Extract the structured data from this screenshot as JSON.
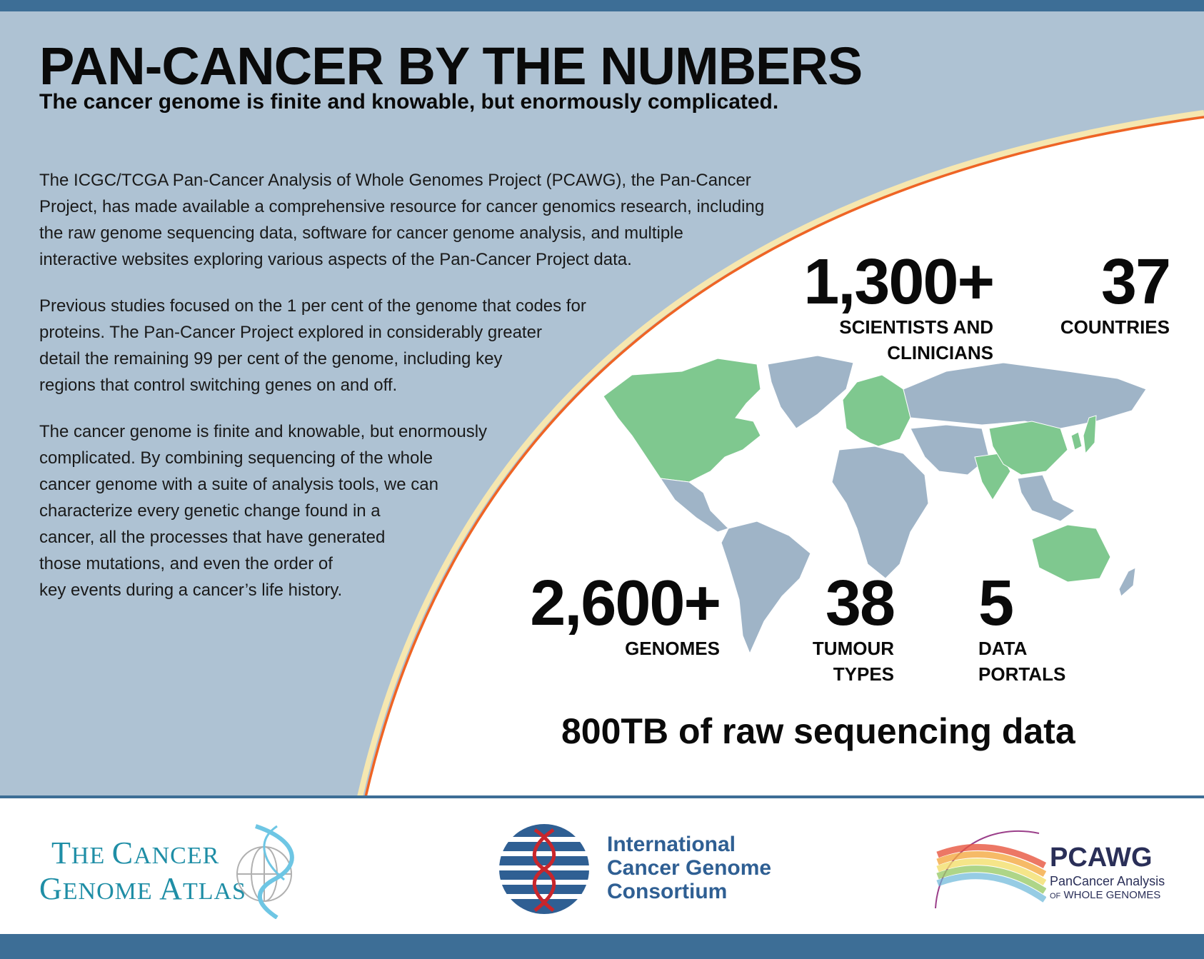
{
  "header": {
    "title": "PAN-CANCER BY THE NUMBERS",
    "subtitle": "The cancer genome is finite and knowable, but enormously complicated."
  },
  "body": {
    "paragraph1": [
      "The ICGC/TCGA Pan-Cancer Analysis of Whole Genomes Project (PCAWG), the Pan-Cancer",
      "Project, has made available a comprehensive resource for cancer genomics research, including",
      "the raw genome sequencing data, software for cancer genome analysis, and multiple",
      "interactive websites exploring various aspects of the Pan-Cancer Project data."
    ],
    "paragraph2": [
      "Previous studies focused on the 1 per cent of the genome that codes for",
      "proteins. The Pan-Cancer Project explored in considerably greater",
      "detail the remaining 99 per cent of the genome, including key",
      "regions that control switching genes on and off."
    ],
    "paragraph3": [
      "The cancer genome is finite and knowable, but enormously",
      "complicated. By combining sequencing of the whole",
      "cancer genome with a suite of analysis tools, we can",
      "characterize every genetic change found in a",
      "cancer, all the processes that have generated",
      "those mutations, and even the order of",
      "key events during a cancer’s life history."
    ]
  },
  "stats": {
    "scientists": {
      "value": "1,300+",
      "label1": "SCIENTISTS AND",
      "label2": "CLINICIANS"
    },
    "countries": {
      "value": "37",
      "label1": "COUNTRIES"
    },
    "genomes": {
      "value": "2,600+",
      "label1": "GENOMES"
    },
    "tumour_types": {
      "value": "38",
      "label1": "TUMOUR",
      "label2": "TYPES"
    },
    "data_portals": {
      "value": "5",
      "label1": "DATA",
      "label2": "PORTALS"
    }
  },
  "tagline": "800TB of raw sequencing data",
  "logos": {
    "tcga": {
      "line1_a": "T",
      "line1_b": "HE ",
      "line1_c": "C",
      "line1_d": "ANCER",
      "line2_a": "G",
      "line2_b": "ENOME ",
      "line2_c": "A",
      "line2_d": "TLAS"
    },
    "icgc": {
      "line1": "International",
      "line2": "Cancer Genome",
      "line3": "Consortium"
    },
    "pcawg": {
      "title": "PCAWG",
      "sub1": "PanCancer Analysis",
      "sub2_small": "OF",
      "sub2_rest": " WHOLE GENOMES"
    }
  },
  "colors": {
    "panel_blue": "#aec2d3",
    "band_blue": "#3d6e96",
    "arc_orange": "#ef6424",
    "arc_cream": "#f6e7b0",
    "map_green": "#7fc88f",
    "map_gray": "#9fb4c7"
  },
  "map": {
    "description_icon": "world-map-icon"
  }
}
